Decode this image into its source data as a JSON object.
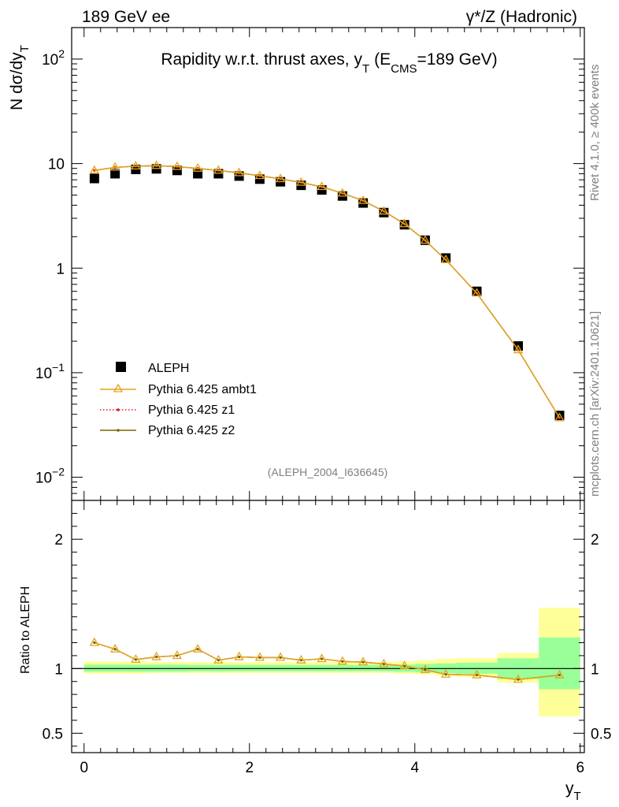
{
  "chart_data": {
    "type": "scatter",
    "header_left": "189 GeV ee",
    "header_right": "γ*/Z (Hadronic)",
    "title_main": "Rapidity w.r.t. thrust axes, y",
    "title_sub": "T",
    "title_ecm": "(E",
    "title_ecm_sub": "CMS",
    "title_ecm_tail": "=189 GeV)",
    "ylabel": "N  dσ/dy",
    "ylabel_sub": "T",
    "xlabel": "y",
    "xlabel_sub": "T",
    "ratio_ylabel": "Ratio to ALEPH",
    "analysis_tag": "(ALEPH_2004_I636645)",
    "side_label_top": "Rivet 4.1.0, ≥ 400k events",
    "side_label_bottom": "mcplots.cern.ch [arXiv:2401.10621]",
    "xlim": [
      -0.15,
      6.05
    ],
    "ylim": [
      0.006,
      200
    ],
    "ratio_ylim": [
      0.35,
      2.3
    ],
    "x_ticks": [
      "0",
      "2",
      "4",
      "6"
    ],
    "y_ticks": [
      {
        "base": "10",
        "exp": "2",
        "value": 100
      },
      {
        "base": "10",
        "exp": "",
        "value": 10
      },
      {
        "base": "1",
        "exp": "",
        "value": 1
      },
      {
        "base": "10",
        "exp": "−1",
        "value": 0.1
      },
      {
        "base": "10",
        "exp": "−2",
        "value": 0.01
      }
    ],
    "ratio_ticks": [
      "0.5",
      "1",
      "2"
    ],
    "bin_edges": [
      0,
      0.25,
      0.5,
      0.75,
      1.0,
      1.25,
      1.5,
      1.75,
      2.0,
      2.25,
      2.5,
      2.75,
      3.0,
      3.25,
      3.5,
      3.75,
      4.0,
      4.25,
      4.5,
      5.0,
      5.5,
      6.0
    ],
    "x": [
      0.125,
      0.375,
      0.625,
      0.875,
      1.125,
      1.375,
      1.625,
      1.875,
      2.125,
      2.375,
      2.625,
      2.875,
      3.125,
      3.375,
      3.625,
      3.875,
      4.125,
      4.375,
      4.75,
      5.25,
      5.75
    ],
    "series": [
      {
        "name": "ALEPH",
        "style": "data",
        "color": "#000000",
        "values": [
          7.2,
          8.0,
          8.8,
          8.9,
          8.6,
          8.0,
          8.0,
          7.6,
          7.1,
          6.7,
          6.2,
          5.6,
          4.9,
          4.2,
          3.4,
          2.6,
          1.85,
          1.25,
          0.6,
          0.18,
          0.039
        ]
      },
      {
        "name": "Pythia 6.425 ambt1",
        "style": "triangle",
        "color": "#e3a41b",
        "values": [
          8.6,
          9.2,
          9.45,
          9.55,
          9.35,
          9.0,
          8.6,
          8.15,
          7.65,
          7.15,
          6.6,
          6.0,
          5.2,
          4.42,
          3.5,
          2.65,
          1.84,
          1.2,
          0.575,
          0.165,
          0.037
        ]
      },
      {
        "name": "Pythia 6.425 z1",
        "style": "dotted",
        "color": "#e31a1c",
        "values": [
          8.6,
          9.2,
          9.45,
          9.55,
          9.35,
          9.0,
          8.6,
          8.15,
          7.65,
          7.15,
          6.6,
          6.0,
          5.2,
          4.42,
          3.5,
          2.65,
          1.84,
          1.2,
          0.575,
          0.165,
          0.037
        ]
      },
      {
        "name": "Pythia 6.425 z2",
        "style": "solid",
        "color": "#7a6300",
        "values": [
          8.6,
          9.2,
          9.45,
          9.55,
          9.35,
          9.0,
          8.6,
          8.15,
          7.65,
          7.15,
          6.6,
          6.0,
          5.2,
          4.42,
          3.5,
          2.65,
          1.84,
          1.2,
          0.575,
          0.165,
          0.037
        ]
      }
    ],
    "ratio_mc": [
      1.2,
      1.15,
      1.07,
      1.09,
      1.1,
      1.15,
      1.065,
      1.09,
      1.085,
      1.085,
      1.065,
      1.075,
      1.055,
      1.05,
      1.035,
      1.02,
      0.99,
      0.955,
      0.95,
      0.915,
      0.95
    ],
    "ratio_band_stat": [
      [
        0.975,
        1.03
      ],
      [
        0.975,
        1.03
      ],
      [
        0.975,
        1.03
      ],
      [
        0.975,
        1.03
      ],
      [
        0.975,
        1.03
      ],
      [
        0.978,
        1.028
      ],
      [
        0.978,
        1.028
      ],
      [
        0.978,
        1.028
      ],
      [
        0.978,
        1.028
      ],
      [
        0.978,
        1.028
      ],
      [
        0.978,
        1.028
      ],
      [
        0.978,
        1.028
      ],
      [
        0.978,
        1.028
      ],
      [
        0.978,
        1.028
      ],
      [
        0.978,
        1.028
      ],
      [
        0.975,
        1.03
      ],
      [
        0.97,
        1.035
      ],
      [
        0.965,
        1.04
      ],
      [
        0.96,
        1.045
      ],
      [
        0.92,
        1.08
      ],
      [
        0.84,
        1.24
      ]
    ],
    "ratio_band_total": [
      [
        0.96,
        1.055
      ],
      [
        0.96,
        1.055
      ],
      [
        0.96,
        1.055
      ],
      [
        0.965,
        1.05
      ],
      [
        0.965,
        1.05
      ],
      [
        0.965,
        1.05
      ],
      [
        0.965,
        1.05
      ],
      [
        0.965,
        1.05
      ],
      [
        0.965,
        1.05
      ],
      [
        0.965,
        1.05
      ],
      [
        0.965,
        1.05
      ],
      [
        0.965,
        1.05
      ],
      [
        0.965,
        1.05
      ],
      [
        0.965,
        1.05
      ],
      [
        0.965,
        1.05
      ],
      [
        0.96,
        1.055
      ],
      [
        0.955,
        1.065
      ],
      [
        0.945,
        1.075
      ],
      [
        0.935,
        1.08
      ],
      [
        0.89,
        1.12
      ],
      [
        0.63,
        1.47
      ]
    ]
  }
}
